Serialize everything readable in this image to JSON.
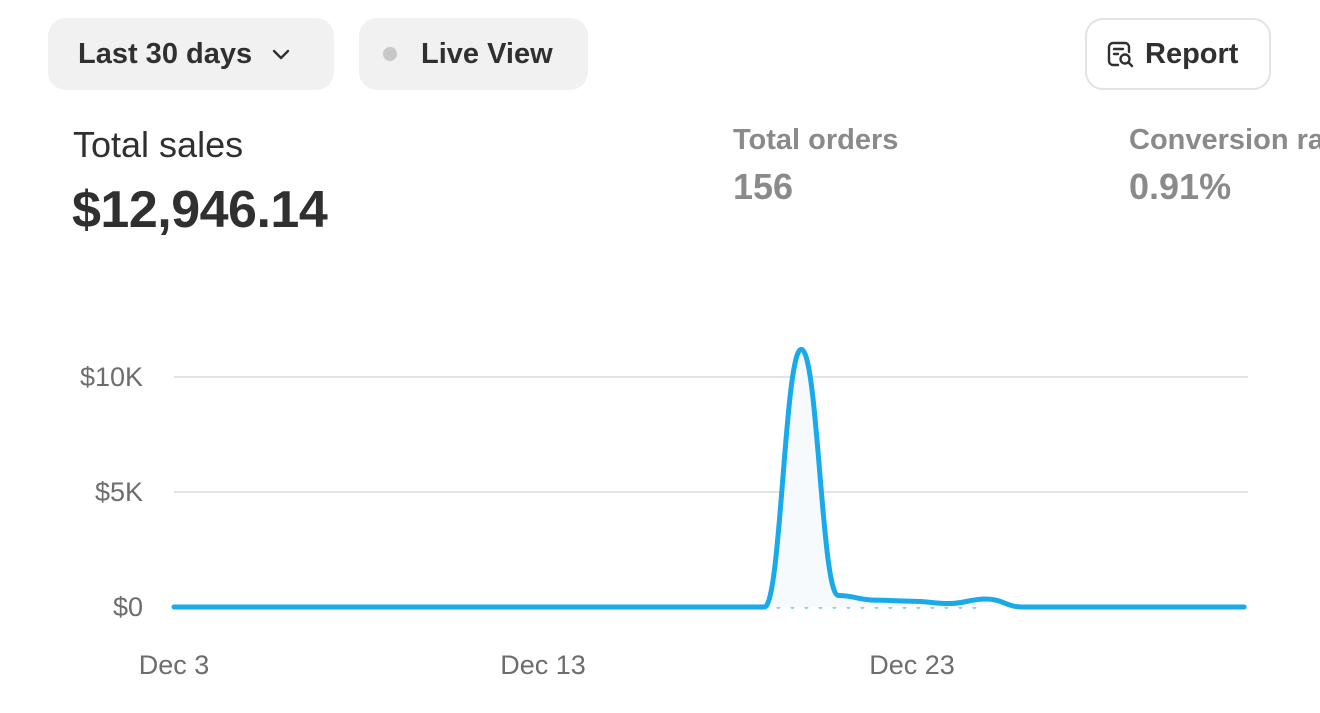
{
  "toolbar": {
    "date_range_label": "Last 30 days",
    "live_view_label": "Live View",
    "report_label": "Report"
  },
  "metrics": {
    "total_sales": {
      "label": "Total sales",
      "value": "$12,946.14"
    },
    "total_orders": {
      "label": "Total orders",
      "value": "156"
    },
    "conversion_rate": {
      "label": "Conversion ra",
      "value": "0.91%"
    }
  },
  "colors": {
    "line": "#1aaaea",
    "grid": "#e3e3e3",
    "comparison": "#8fd0e6",
    "muted_text": "#8a8a8a"
  },
  "chart_data": {
    "type": "line",
    "y_tick_labels": [
      "$0",
      "$5K",
      "$10K"
    ],
    "y_ticks": [
      0,
      5000,
      10000
    ],
    "x_tick_labels": [
      "Dec 3",
      "Dec 13",
      "Dec 23"
    ],
    "ylim": [
      0,
      10000
    ],
    "grid": true,
    "series": [
      {
        "x": [
          "Dec 3",
          "Dec 4",
          "Dec 5",
          "Dec 6",
          "Dec 7",
          "Dec 8",
          "Dec 9",
          "Dec 10",
          "Dec 11",
          "Dec 12",
          "Dec 13",
          "Dec 14",
          "Dec 15",
          "Dec 16",
          "Dec 17",
          "Dec 18",
          "Dec 19",
          "Dec 20",
          "Dec 21",
          "Dec 22",
          "Dec 23",
          "Dec 24",
          "Dec 25",
          "Dec 26",
          "Dec 27",
          "Dec 28",
          "Dec 29",
          "Dec 30",
          "Dec 31",
          "Jan 1"
        ],
        "values": [
          0,
          0,
          0,
          0,
          0,
          0,
          0,
          0,
          0,
          0,
          0,
          0,
          0,
          0,
          0,
          0,
          0,
          11200,
          500,
          300,
          250,
          150,
          350,
          0,
          0,
          0,
          0,
          0,
          0,
          0
        ]
      },
      {
        "style": "dotted",
        "x": [
          "Dec 19",
          "Dec 20",
          "Dec 21",
          "Dec 22",
          "Dec 23",
          "Dec 24",
          "Dec 25"
        ],
        "values": [
          0,
          0,
          0,
          0,
          0,
          0,
          0
        ]
      }
    ]
  }
}
